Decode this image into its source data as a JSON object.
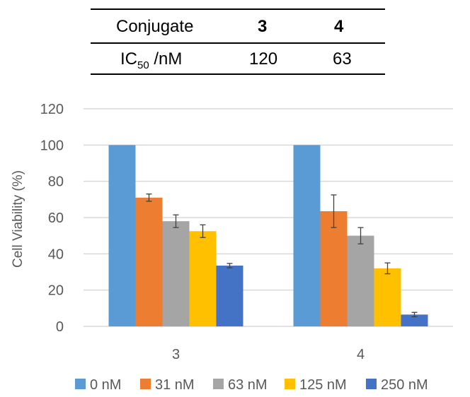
{
  "ic50_table": {
    "header": {
      "label": "Conjugate",
      "col1": "3",
      "col2": "4"
    },
    "row": {
      "label_main": "IC",
      "label_sub": "50",
      "label_rest": " /nM",
      "col1": "120",
      "col2": "63"
    }
  },
  "chart_data": {
    "type": "bar",
    "title": "",
    "xlabel": "",
    "ylabel": "Cell Viability (%)",
    "ylim": [
      0,
      120
    ],
    "yticks": [
      0,
      20,
      40,
      60,
      80,
      100,
      120
    ],
    "grid": true,
    "legend_position": "bottom",
    "categories": [
      "3",
      "4"
    ],
    "series": [
      {
        "name": "0 nM",
        "color": "#5B9BD5",
        "values": [
          100,
          100
        ],
        "errors": [
          0,
          0
        ]
      },
      {
        "name": "31 nM",
        "color": "#ED7D31",
        "values": [
          71,
          63.5
        ],
        "errors": [
          2,
          9
        ]
      },
      {
        "name": "63 nM",
        "color": "#A5A5A5",
        "values": [
          58,
          50
        ],
        "errors": [
          3.5,
          4.5
        ]
      },
      {
        "name": "125 nM",
        "color": "#FFC000",
        "values": [
          52.5,
          32
        ],
        "errors": [
          3.5,
          3
        ]
      },
      {
        "name": "250 nM",
        "color": "#4472C4",
        "values": [
          33.5,
          6.5
        ],
        "errors": [
          1.2,
          1.2
        ]
      }
    ]
  }
}
